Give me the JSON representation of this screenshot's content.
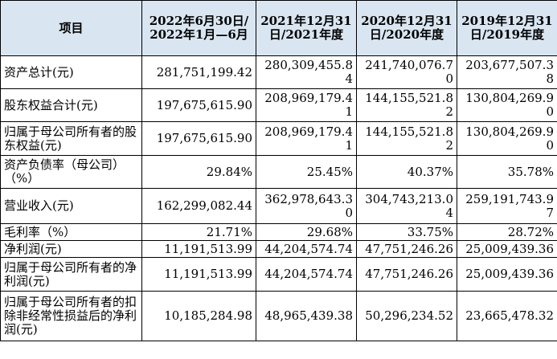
{
  "header": {
    "item": "项目",
    "col1": "2022年6月30日/2022年1月—6月",
    "col2": "2021年12月31日/2021年度",
    "col3": "2020年12月31日/2020年度",
    "col4": "2019年12月31日/2019年度"
  },
  "rows": [
    {
      "label": "资产总计(元)",
      "values": [
        "281,751,199.42",
        "280,309,455.84",
        "241,740,076.70",
        "203,677,507.38"
      ]
    },
    {
      "label": "股东权益合计(元)",
      "values": [
        "197,675,615.90",
        "208,969,179.41",
        "144,155,521.82",
        "130,804,269.90"
      ]
    },
    {
      "label": "归属于母公司所有者的股东权益(元)",
      "values": [
        "197,675,615.90",
        "208,969,179.41",
        "144,155,521.82",
        "130,804,269.90"
      ]
    },
    {
      "label": "资产负债率（母公司）（%）",
      "values": [
        "29.84%",
        "25.45%",
        "40.37%",
        "35.78%"
      ]
    },
    {
      "label": "营业收入(元)",
      "values": [
        "162,299,082.44",
        "362,978,643.30",
        "304,743,213.04",
        "259,191,743.97"
      ]
    },
    {
      "label": "毛利率（%）",
      "values": [
        "21.71%",
        "29.68%",
        "33.75%",
        "28.72%"
      ]
    },
    {
      "label": "净利润(元)",
      "values": [
        "11,191,513.99",
        "44,204,574.74",
        "47,751,246.26",
        "25,009,439.36"
      ]
    },
    {
      "label": "归属于母公司所有者的净利润(元)",
      "values": [
        "11,191,513.99",
        "44,204,574.74",
        "47,751,246.26",
        "25,009,439.36"
      ]
    },
    {
      "label": "归属于母公司所有者的扣除非经常性损益后的净利润(元)",
      "values": [
        "10,185,284.98",
        "48,965,439.38",
        "50,296,234.52",
        "23,665,478.32"
      ]
    }
  ]
}
